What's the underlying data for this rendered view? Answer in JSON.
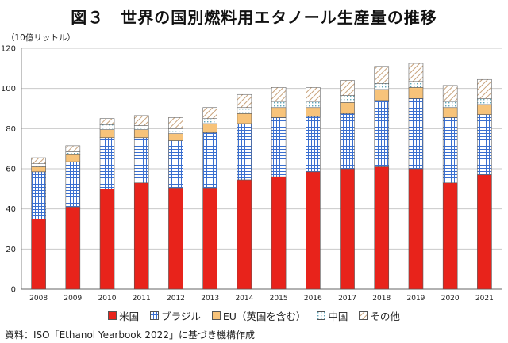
{
  "title": "図３　世界の国別燃料用エタノール生産量の推移",
  "unit_label": "（10億リットル）",
  "source": "資料：ISO「Ethanol Yearbook 2022」に基づき機構作成",
  "chart_data": {
    "type": "bar",
    "stacked": true,
    "categories": [
      "2008",
      "2009",
      "2010",
      "2011",
      "2012",
      "2013",
      "2014",
      "2015",
      "2016",
      "2017",
      "2018",
      "2019",
      "2020",
      "2021"
    ],
    "ylim": [
      0,
      120
    ],
    "yticks": [
      0,
      20,
      40,
      60,
      80,
      100,
      120
    ],
    "grid": true,
    "legend_position": "bottom",
    "series": [
      {
        "name": "米国",
        "color": "#e8231b",
        "pattern": "solid",
        "values": [
          35,
          41,
          50,
          53,
          50.5,
          50.5,
          54.5,
          56,
          58.5,
          60,
          61,
          60,
          53,
          57
        ]
      },
      {
        "name": "ブラジル",
        "color": "#3a6fd0",
        "pattern": "grid",
        "values": [
          23.5,
          22.5,
          25.5,
          22.5,
          23.5,
          27.5,
          28,
          29.5,
          27.5,
          27.5,
          33,
          35,
          32.5,
          30
        ]
      },
      {
        "name": "EU（英国を含む）",
        "color": "#f7c37a",
        "pattern": "solid",
        "values": [
          2.5,
          3.5,
          4,
          4,
          3.5,
          4.5,
          5,
          5,
          4.5,
          5.5,
          5.5,
          5.5,
          5,
          5
        ]
      },
      {
        "name": "中国",
        "color": "#5fa6b8",
        "pattern": "dots",
        "values": [
          1.5,
          1.5,
          2.5,
          2,
          2.5,
          2.5,
          3,
          3,
          3,
          3.5,
          3,
          3,
          3,
          3
        ]
      },
      {
        "name": "その他",
        "color": "#c8a27a",
        "pattern": "hatch",
        "values": [
          3,
          3,
          3,
          5,
          5.5,
          5.5,
          6.5,
          7,
          7,
          7.5,
          8.5,
          9,
          8,
          9.5
        ]
      }
    ]
  }
}
